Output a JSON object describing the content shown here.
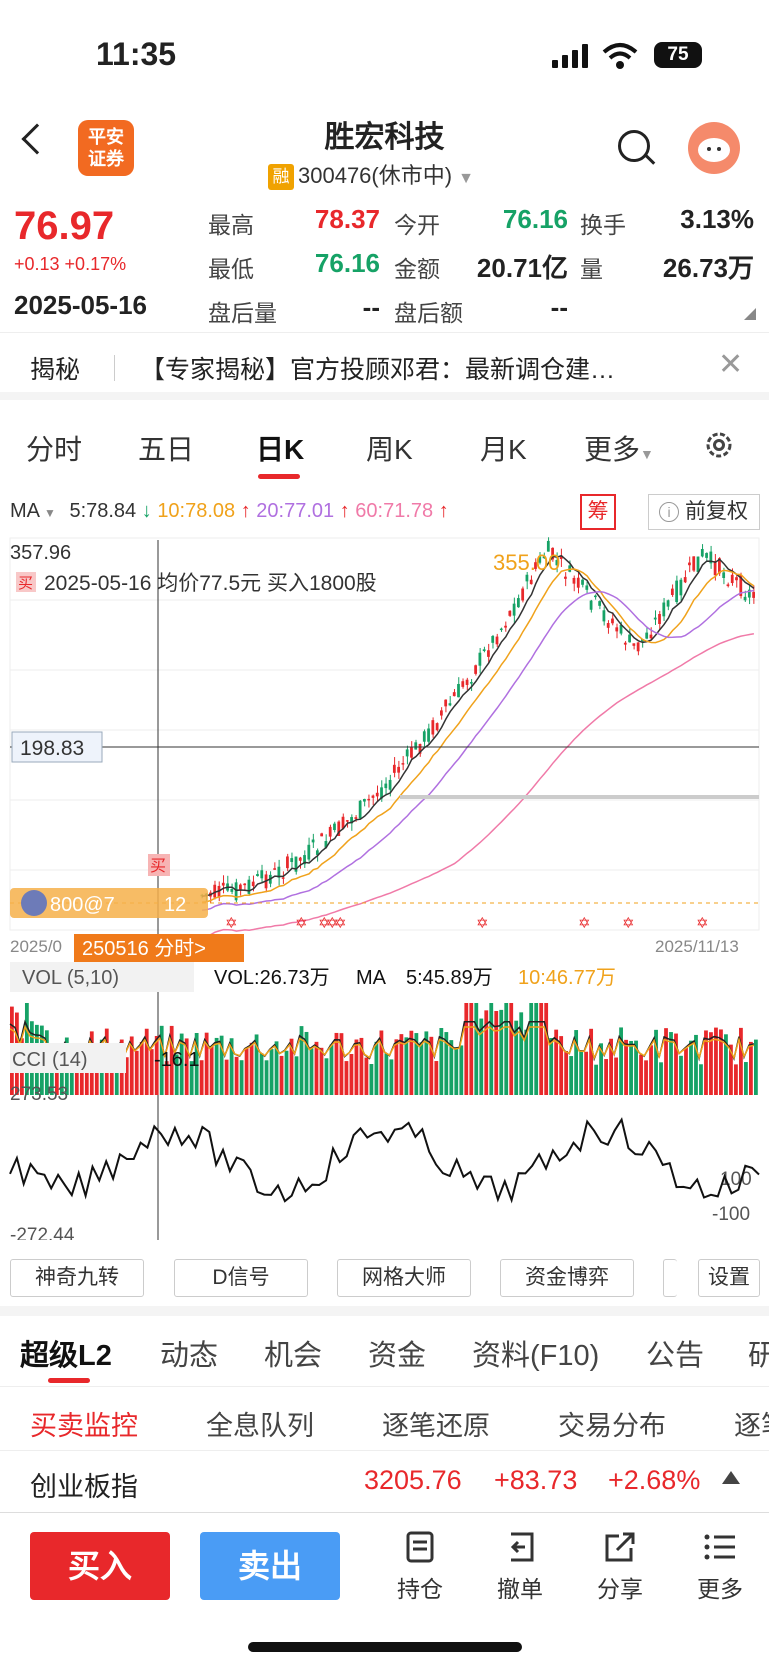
{
  "status": {
    "time": "11:35",
    "battery": "75"
  },
  "header": {
    "logo": "平安\n证券",
    "title": "胜宏科技",
    "badge": "融",
    "code_status": "300476(休市中)"
  },
  "quote": {
    "price": "76.97",
    "change": "+0.13  +0.17%",
    "date": "2025-05-16",
    "labels": {
      "high": "最高",
      "open": "今开",
      "turnover": "换手",
      "low": "最低",
      "amount": "金额",
      "volume": "量",
      "after_vol": "盘后量",
      "after_amt": "盘后额"
    },
    "values": {
      "high": "78.37",
      "open": "76.16",
      "turnover": "3.13%",
      "low": "76.16",
      "amount": "20.71亿",
      "volume": "26.73万",
      "after_vol": "--",
      "after_amt": "--"
    }
  },
  "notice": {
    "tag": "揭秘",
    "text": "【专家揭秘】官方投顾邓君：最新调仓建…"
  },
  "period_tabs": [
    "分时",
    "五日",
    "日K",
    "周K",
    "月K",
    "更多"
  ],
  "ma": {
    "label": "MA",
    "ma5": "5:78.84",
    "ma10": "10:78.08",
    "ma20": "20:77.01",
    "ma60": "60:71.78",
    "chou": "筹",
    "fq": "前复权"
  },
  "kline": {
    "max_label": "357.96",
    "peak_label": "355.00",
    "trade_note": "2025-05-16 均价77.5元 买入1800股",
    "trade_tag": "买",
    "crosshair_price": "198.83",
    "order_label": "800@7",
    "order_label2": "12",
    "date_left": "2025/0",
    "date_right": "2025/11/13",
    "intraday_link": "250516 分时>",
    "colors": {
      "up": "#e8282b",
      "down": "#16a266",
      "ma5": "#333333",
      "ma10": "#f0a21b",
      "ma20": "#b070e0",
      "ma60": "#f07aa8"
    }
  },
  "vol": {
    "title": "VOL (5,10)",
    "vol": "VOL:26.73万",
    "ma": "MA",
    "ma5": "5:45.89万",
    "ma10": "10:46.77万"
  },
  "cci": {
    "title": "CCI (14)",
    "value": "-16.1",
    "max": "273.53",
    "min": "-272.44",
    "p100": "100",
    "n100": "-100"
  },
  "tools": [
    "神奇九转",
    "D信号",
    "网格大师",
    "资金博弈",
    "设置"
  ],
  "bottom_tabs": [
    "超级L2",
    "动态",
    "机会",
    "资金",
    "资料(F10)",
    "公告",
    "研"
  ],
  "sub_tabs": [
    "买卖监控",
    "全息队列",
    "逐笔还原",
    "交易分布",
    "逐笔"
  ],
  "index": {
    "name": "创业板指",
    "value": "3205.76",
    "change": "+83.73",
    "pct": "+2.68%"
  },
  "actions": {
    "buy": "买入",
    "sell": "卖出",
    "hold": "持仓",
    "cancel": "撤单",
    "share": "分享",
    "more": "更多"
  }
}
